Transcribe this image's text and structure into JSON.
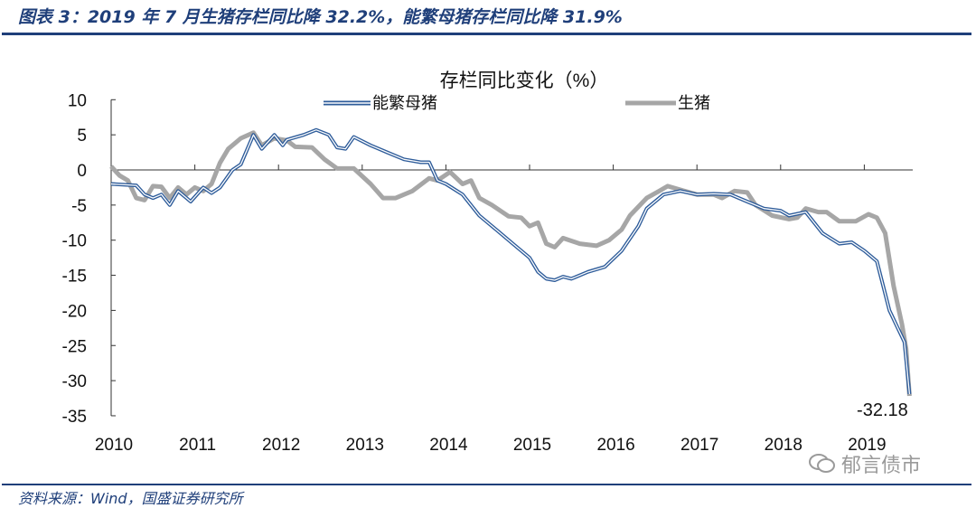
{
  "header": {
    "figure_title": "图表 3：2019 年 7 月生猪存栏同比降 32.2%，能繁母猪存栏同比降 31.9%"
  },
  "footer": {
    "source": "资料来源：Wind，国盛证券研究所",
    "watermark": "郁言债市"
  },
  "colors": {
    "sows": "#2e5c9a",
    "hogs": "#a6a6a6",
    "brand": "#1f3f7a"
  },
  "chart_data": {
    "type": "line",
    "title": "存栏同比变化（%）",
    "xlabel": "",
    "ylabel": "",
    "ylim": [
      -35,
      10
    ],
    "yticks": [
      10,
      5,
      0,
      -5,
      -10,
      -15,
      -20,
      -25,
      -30,
      -35
    ],
    "xlim": [
      2010,
      2019.6
    ],
    "xticks": [
      "2010",
      "2011",
      "2012",
      "2013",
      "2014",
      "2015",
      "2016",
      "2017",
      "2018",
      "2019"
    ],
    "legend_position": "top",
    "annotations": [
      {
        "text": "-32.18",
        "series": "生猪",
        "x": 2019.54,
        "y": -32.18
      }
    ],
    "series": [
      {
        "name": "能繁母猪",
        "style": "double-blue",
        "x": [
          2010.0,
          2010.3,
          2010.4,
          2010.5,
          2010.6,
          2010.7,
          2010.8,
          2010.95,
          2011.1,
          2011.2,
          2011.3,
          2011.45,
          2011.55,
          2011.7,
          2011.8,
          2011.95,
          2012.05,
          2012.1,
          2012.3,
          2012.45,
          2012.6,
          2012.7,
          2012.8,
          2012.9,
          2013.1,
          2013.3,
          2013.5,
          2013.7,
          2013.8,
          2013.9,
          2014.0,
          2014.2,
          2014.4,
          2014.6,
          2014.8,
          2015.0,
          2015.1,
          2015.2,
          2015.3,
          2015.4,
          2015.5,
          2015.7,
          2015.9,
          2016.1,
          2016.3,
          2016.4,
          2016.6,
          2016.8,
          2017.0,
          2017.2,
          2017.4,
          2017.6,
          2017.8,
          2018.0,
          2018.1,
          2018.3,
          2018.5,
          2018.7,
          2018.85,
          2019.0,
          2019.15,
          2019.3,
          2019.4,
          2019.48,
          2019.54
        ],
        "y": [
          -2,
          -2.2,
          -3.5,
          -4,
          -3.5,
          -5,
          -3,
          -4.5,
          -2.5,
          -3.3,
          -2.5,
          0,
          0.8,
          5,
          3,
          5,
          3.5,
          4.3,
          5,
          5.7,
          5,
          3.2,
          3,
          4.7,
          3.5,
          2.5,
          1.5,
          1.1,
          1.1,
          -1.5,
          -2,
          -3.5,
          -6.5,
          -8.5,
          -10.5,
          -12.5,
          -14.5,
          -15.5,
          -15.7,
          -15.2,
          -15.5,
          -14.5,
          -13.8,
          -11.5,
          -8,
          -5.5,
          -3.5,
          -3,
          -3.5,
          -3.4,
          -3.5,
          -4.5,
          -5.5,
          -5.8,
          -6.5,
          -6,
          -9,
          -10.5,
          -10.3,
          -11.5,
          -13,
          -20,
          -22.5,
          -24.5,
          -31.9
        ]
      },
      {
        "name": "生猪",
        "style": "thick-grey",
        "x": [
          2010.0,
          2010.1,
          2010.2,
          2010.3,
          2010.4,
          2010.5,
          2010.6,
          2010.7,
          2010.8,
          2010.9,
          2011.0,
          2011.1,
          2011.2,
          2011.3,
          2011.4,
          2011.55,
          2011.7,
          2011.8,
          2011.95,
          2012.1,
          2012.2,
          2012.4,
          2012.55,
          2012.7,
          2012.9,
          2013.1,
          2013.25,
          2013.4,
          2013.6,
          2013.8,
          2013.9,
          2014.05,
          2014.2,
          2014.3,
          2014.4,
          2014.55,
          2014.75,
          2014.9,
          2015.0,
          2015.1,
          2015.2,
          2015.3,
          2015.4,
          2015.6,
          2015.8,
          2015.95,
          2016.1,
          2016.2,
          2016.4,
          2016.55,
          2016.65,
          2016.85,
          2017.0,
          2017.2,
          2017.3,
          2017.45,
          2017.6,
          2017.7,
          2017.9,
          2018.1,
          2018.2,
          2018.3,
          2018.45,
          2018.55,
          2018.7,
          2018.9,
          2019.05,
          2019.15,
          2019.25,
          2019.35,
          2019.45,
          2019.5,
          2019.54
        ],
        "y": [
          0.5,
          -0.8,
          -1.5,
          -4,
          -4.3,
          -2.3,
          -2.4,
          -4,
          -2.5,
          -3.5,
          -2.5,
          -3,
          -2,
          1,
          3,
          4.5,
          5.3,
          3.5,
          4.5,
          4.2,
          3.3,
          3.2,
          1.5,
          0.2,
          0.2,
          -2,
          -4,
          -4,
          -3,
          -1.2,
          -1.5,
          -0.3,
          -2,
          -1.5,
          -4,
          -5,
          -6.6,
          -6.8,
          -8,
          -7.5,
          -10.5,
          -11,
          -9.7,
          -10.5,
          -10.8,
          -10,
          -8.5,
          -6.5,
          -4,
          -3,
          -2.3,
          -3,
          -3.5,
          -3.5,
          -4,
          -3,
          -3.2,
          -5,
          -6.5,
          -7,
          -6.8,
          -5.5,
          -6,
          -6,
          -7.3,
          -7.3,
          -6.3,
          -6.8,
          -9,
          -16.5,
          -22,
          -25.5,
          -32.18
        ]
      }
    ]
  }
}
